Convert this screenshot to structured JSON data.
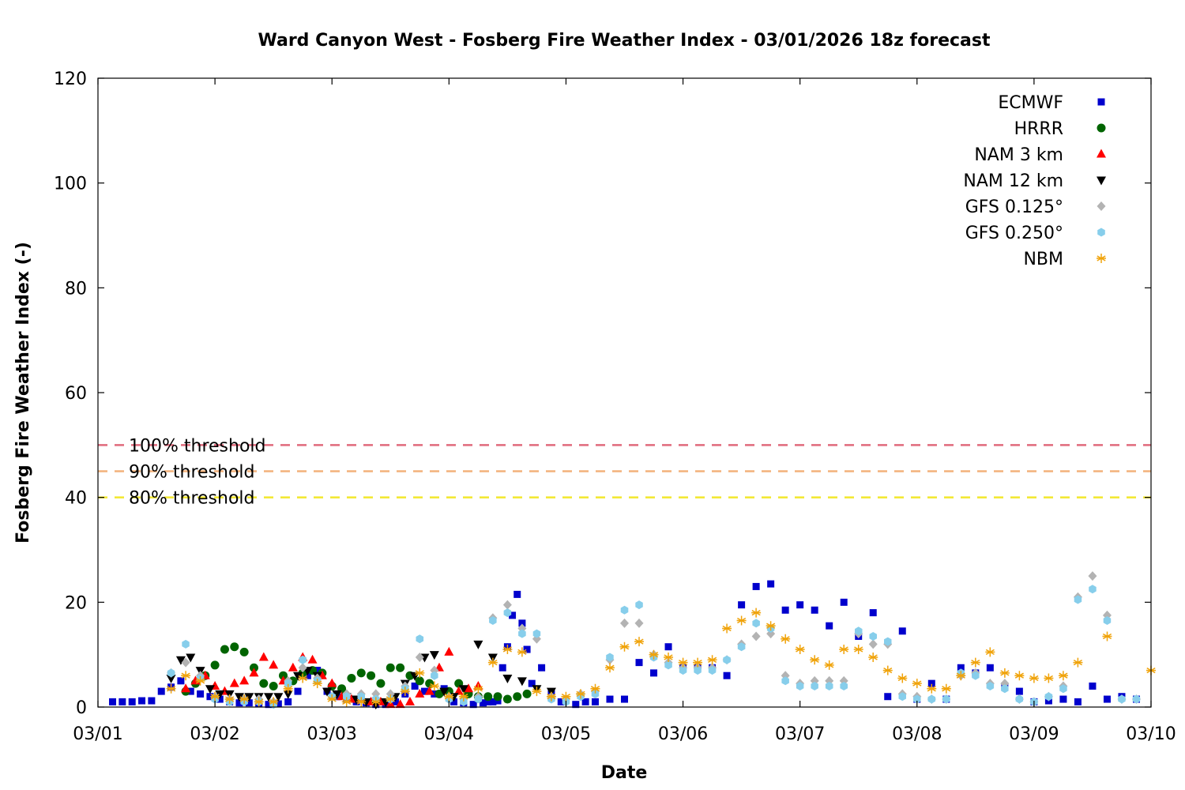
{
  "chart_data": {
    "type": "scatter",
    "title": "Ward Canyon West - Fosberg Fire Weather Index - 03/01/2026 18z forecast",
    "xlabel": "Date",
    "ylabel": "Fosberg Fire Weather Index (-)",
    "xlim": [
      "03/01 00z",
      "03/10 00z"
    ],
    "ylim": [
      0,
      120
    ],
    "x_ticks": [
      "03/01",
      "03/02",
      "03/03",
      "03/04",
      "03/05",
      "03/06",
      "03/07",
      "03/08",
      "03/09",
      "03/10"
    ],
    "y_ticks": [
      "0",
      "20",
      "40",
      "60",
      "80",
      "100",
      "120"
    ],
    "legend_position": "top-right",
    "grid": false,
    "thresholds": [
      {
        "name": "100% threshold",
        "value": 50,
        "color": "#e06a7c"
      },
      {
        "name": "90% threshold",
        "value": 45,
        "color": "#f3b27b"
      },
      {
        "name": "80% threshold",
        "value": 40,
        "color": "#f2e82d"
      }
    ],
    "series": [
      {
        "name": "ECMWF",
        "marker": "square",
        "color": "#0000cd",
        "x": [
          "03/01 03z",
          "03/01 05z",
          "03/01 07z",
          "03/01 09z",
          "03/01 11z",
          "03/01 13z",
          "03/01 15z",
          "03/01 17z",
          "03/01 19z",
          "03/01 21z",
          "03/01 23z",
          "03/02 01z",
          "03/02 03z",
          "03/02 05z",
          "03/02 07z",
          "03/02 09z",
          "03/02 11z",
          "03/02 13z",
          "03/02 15z",
          "03/02 17z",
          "03/02 19z",
          "03/02 21z",
          "03/02 23z",
          "03/03 01z",
          "03/03 03z",
          "03/03 05z",
          "03/03 07z",
          "03/03 09z",
          "03/03 11z",
          "03/03 13z",
          "03/03 15z",
          "03/03 17z",
          "03/03 19z",
          "03/03 21z",
          "03/03 23z",
          "03/04 01z",
          "03/04 03z",
          "03/04 05z",
          "03/04 07z",
          "03/04 08z",
          "03/04 09z",
          "03/04 10z",
          "03/04 11z",
          "03/04 12z",
          "03/04 13z",
          "03/04 14z",
          "03/04 15z",
          "03/04 16z",
          "03/04 17z",
          "03/04 19z",
          "03/04 21z",
          "03/04 23z",
          "03/05 02z",
          "03/05 04z",
          "03/05 06z",
          "03/05 09z",
          "03/05 12z",
          "03/05 15z",
          "03/05 18z",
          "03/05 21z",
          "03/06 00z",
          "03/06 03z",
          "03/06 06z",
          "03/06 09z",
          "03/06 12z",
          "03/06 15z",
          "03/06 18z",
          "03/06 21z",
          "03/07 00z",
          "03/07 03z",
          "03/07 06z",
          "03/07 09z",
          "03/07 12z",
          "03/07 15z",
          "03/07 18z",
          "03/07 21z",
          "03/08 00z",
          "03/08 03z",
          "03/08 06z",
          "03/08 09z",
          "03/08 12z",
          "03/08 15z",
          "03/08 18z",
          "03/08 21z",
          "03/09 00z",
          "03/09 03z",
          "03/09 06z",
          "03/09 09z",
          "03/09 12z",
          "03/09 15z",
          "03/09 18z",
          "03/09 21z"
        ],
        "y": [
          1.0,
          1.0,
          1.0,
          1.2,
          1.2,
          3.0,
          3.8,
          5.0,
          3.0,
          2.5,
          2.0,
          1.5,
          1.0,
          0.8,
          0.8,
          0.6,
          0.5,
          0.6,
          1.0,
          3.0,
          6.0,
          7.0,
          3.0,
          2.0,
          1.5,
          1.0,
          0.8,
          0.5,
          0.5,
          1.0,
          2.5,
          4.0,
          3.0,
          2.5,
          3.5,
          1.0,
          0.8,
          0.5,
          0.8,
          1.0,
          1.0,
          1.2,
          7.5,
          11.5,
          17.5,
          21.5,
          16.0,
          11.0,
          4.5,
          7.5,
          2.5,
          1.0,
          0.5,
          1.0,
          1.0,
          1.5,
          1.5,
          8.5,
          6.5,
          11.5,
          7.5,
          7.5,
          7.5,
          6.0,
          19.5,
          23.0,
          23.5,
          18.5,
          19.5,
          18.5,
          15.5,
          20.0,
          13.5,
          18.0,
          2.0,
          14.5,
          1.5,
          4.5,
          1.5,
          7.5,
          6.5,
          7.5,
          4.0,
          3.0,
          1.0,
          1.2,
          1.5,
          1.0,
          4.0,
          1.5,
          2.0,
          1.5
        ]
      },
      {
        "name": "HRRR",
        "marker": "circle",
        "color": "#006400",
        "x": [
          "03/01 18z",
          "03/01 20z",
          "03/01 22z",
          "03/02 00z",
          "03/02 02z",
          "03/02 04z",
          "03/02 06z",
          "03/02 08z",
          "03/02 10z",
          "03/02 12z",
          "03/02 14z",
          "03/02 16z",
          "03/02 18z",
          "03/02 20z",
          "03/02 22z",
          "03/03 00z",
          "03/03 02z",
          "03/03 04z",
          "03/03 06z",
          "03/03 08z",
          "03/03 10z",
          "03/03 12z",
          "03/03 14z",
          "03/03 16z",
          "03/03 18z",
          "03/03 20z",
          "03/03 22z",
          "03/04 00z",
          "03/04 02z",
          "03/04 04z",
          "03/04 06z",
          "03/04 08z",
          "03/04 10z",
          "03/04 12z",
          "03/04 14z",
          "03/04 16z"
        ],
        "y": [
          3.0,
          4.5,
          6.0,
          8.0,
          11.0,
          11.5,
          10.5,
          7.5,
          4.5,
          4.0,
          6.0,
          5.0,
          6.5,
          7.0,
          6.5,
          4.0,
          3.5,
          5.5,
          6.5,
          6.0,
          4.5,
          7.5,
          7.5,
          6.0,
          5.0,
          4.5,
          2.5,
          3.0,
          4.5,
          2.5,
          2.0,
          2.0,
          2.0,
          1.5,
          2.0,
          2.5
        ]
      },
      {
        "name": "NAM 3 km",
        "marker": "triangle-up",
        "color": "#ff0000",
        "x": [
          "03/01 18z",
          "03/01 20z",
          "03/01 22z",
          "03/02 00z",
          "03/02 02z",
          "03/02 04z",
          "03/02 06z",
          "03/02 08z",
          "03/02 10z",
          "03/02 12z",
          "03/02 14z",
          "03/02 16z",
          "03/02 18z",
          "03/02 20z",
          "03/02 22z",
          "03/03 00z",
          "03/03 02z",
          "03/03 04z",
          "03/03 06z",
          "03/03 08z",
          "03/03 10z",
          "03/03 12z",
          "03/03 14z",
          "03/03 16z",
          "03/03 18z",
          "03/03 20z",
          "03/03 22z",
          "03/04 00z",
          "03/04 02z",
          "03/04 04z",
          "03/04 06z"
        ],
        "y": [
          3.5,
          5.0,
          6.0,
          4.0,
          3.0,
          4.5,
          5.0,
          6.5,
          9.5,
          8.0,
          5.0,
          7.5,
          9.5,
          9.0,
          6.0,
          4.5,
          2.0,
          1.5,
          1.5,
          1.0,
          1.0,
          0.5,
          0.5,
          1.0,
          2.5,
          3.0,
          7.5,
          10.5,
          3.0,
          3.5,
          4.0
        ]
      },
      {
        "name": "NAM 12 km",
        "marker": "triangle-down",
        "color": "#000000",
        "x": [
          "03/01 15z",
          "03/01 17z",
          "03/01 19z",
          "03/01 21z",
          "03/01 23z",
          "03/02 01z",
          "03/02 03z",
          "03/02 05z",
          "03/02 07z",
          "03/02 09z",
          "03/02 11z",
          "03/02 13z",
          "03/02 15z",
          "03/02 17z",
          "03/02 19z",
          "03/02 21z",
          "03/02 23z",
          "03/03 01z",
          "03/03 03z",
          "03/03 05z",
          "03/03 07z",
          "03/03 09z",
          "03/03 11z",
          "03/03 13z",
          "03/03 15z",
          "03/03 17z",
          "03/03 19z",
          "03/03 21z",
          "03/03 23z",
          "03/04 01z",
          "03/04 03z",
          "03/04 06z",
          "03/04 09z",
          "03/04 12z",
          "03/04 15z",
          "03/04 18z",
          "03/04 21z"
        ],
        "y": [
          5.5,
          9.0,
          9.5,
          7.0,
          3.5,
          2.5,
          2.5,
          2.0,
          2.0,
          2.0,
          2.0,
          2.0,
          2.5,
          6.0,
          7.0,
          6.0,
          3.0,
          2.5,
          2.0,
          1.5,
          1.0,
          0.5,
          1.0,
          2.0,
          4.5,
          6.0,
          9.5,
          10.0,
          3.0,
          2.0,
          3.5,
          12.0,
          9.5,
          5.5,
          5.0,
          3.5,
          3.0
        ]
      },
      {
        "name": "GFS 0.125°",
        "marker": "diamond",
        "color": "#b3b3b3",
        "x": [
          "03/01 15z",
          "03/01 18z",
          "03/01 21z",
          "03/02 00z",
          "03/02 03z",
          "03/02 06z",
          "03/02 09z",
          "03/02 12z",
          "03/02 15z",
          "03/02 18z",
          "03/02 21z",
          "03/03 00z",
          "03/03 03z",
          "03/03 06z",
          "03/03 09z",
          "03/03 12z",
          "03/03 15z",
          "03/03 18z",
          "03/03 21z",
          "03/04 00z",
          "03/04 03z",
          "03/04 06z",
          "03/04 09z",
          "03/04 12z",
          "03/04 15z",
          "03/04 18z",
          "03/04 21z",
          "03/05 00z",
          "03/05 03z",
          "03/05 06z",
          "03/05 09z",
          "03/05 12z",
          "03/05 15z",
          "03/05 18z",
          "03/05 21z",
          "03/06 00z",
          "03/06 03z",
          "03/06 06z",
          "03/06 09z",
          "03/06 12z",
          "03/06 15z",
          "03/06 18z",
          "03/06 21z",
          "03/07 00z",
          "03/07 03z",
          "03/07 06z",
          "03/07 09z",
          "03/07 12z",
          "03/07 15z",
          "03/07 18z",
          "03/07 21z",
          "03/08 00z",
          "03/08 03z",
          "03/08 06z",
          "03/08 09z",
          "03/08 12z",
          "03/08 15z",
          "03/08 18z",
          "03/08 21z",
          "03/09 00z",
          "03/09 03z",
          "03/09 06z",
          "03/09 09z",
          "03/09 12z",
          "03/09 15z",
          "03/09 18z",
          "03/09 21z"
        ],
        "y": [
          6.5,
          8.5,
          6.0,
          2.0,
          1.5,
          1.5,
          1.5,
          1.0,
          5.0,
          7.5,
          5.5,
          2.0,
          2.5,
          2.5,
          2.5,
          2.5,
          4.0,
          9.5,
          7.0,
          2.0,
          1.5,
          2.0,
          17.0,
          19.5,
          15.0,
          13.0,
          2.0,
          1.5,
          2.5,
          3.0,
          9.0,
          16.0,
          16.0,
          10.0,
          8.5,
          7.5,
          7.5,
          7.5,
          9.0,
          12.0,
          13.5,
          14.0,
          6.0,
          4.5,
          5.0,
          5.0,
          5.0,
          14.0,
          12.0,
          12.0,
          2.5,
          2.0,
          1.5,
          1.5,
          6.0,
          6.5,
          4.5,
          4.5,
          1.5,
          1.0,
          2.0,
          4.0,
          21.0,
          25.0,
          17.5,
          1.5,
          1.5
        ]
      },
      {
        "name": "GFS 0.250°",
        "marker": "hexagon",
        "color": "#87ceeb",
        "x": [
          "03/01 15z",
          "03/01 18z",
          "03/01 21z",
          "03/02 00z",
          "03/02 03z",
          "03/02 06z",
          "03/02 09z",
          "03/02 12z",
          "03/02 15z",
          "03/02 18z",
          "03/02 21z",
          "03/03 00z",
          "03/03 03z",
          "03/03 06z",
          "03/03 09z",
          "03/03 12z",
          "03/03 15z",
          "03/03 18z",
          "03/03 21z",
          "03/04 00z",
          "03/04 03z",
          "03/04 06z",
          "03/04 09z",
          "03/04 12z",
          "03/04 15z",
          "03/04 18z",
          "03/04 21z",
          "03/05 00z",
          "03/05 03z",
          "03/05 06z",
          "03/05 09z",
          "03/05 12z",
          "03/05 15z",
          "03/05 18z",
          "03/05 21z",
          "03/06 00z",
          "03/06 03z",
          "03/06 06z",
          "03/06 09z",
          "03/06 12z",
          "03/06 15z",
          "03/06 18z",
          "03/06 21z",
          "03/07 00z",
          "03/07 03z",
          "03/07 06z",
          "03/07 09z",
          "03/07 12z",
          "03/07 15z",
          "03/07 18z",
          "03/07 21z",
          "03/08 00z",
          "03/08 03z",
          "03/08 06z",
          "03/08 09z",
          "03/08 12z",
          "03/08 15z",
          "03/08 18z",
          "03/08 21z",
          "03/09 00z",
          "03/09 03z",
          "03/09 06z",
          "03/09 09z",
          "03/09 12z",
          "03/09 15z",
          "03/09 18z",
          "03/09 21z"
        ],
        "y": [
          6.5,
          12.0,
          5.5,
          1.5,
          1.0,
          1.0,
          1.0,
          0.5,
          4.5,
          9.0,
          5.0,
          2.0,
          2.0,
          2.0,
          1.5,
          1.5,
          3.5,
          13.0,
          6.0,
          1.5,
          1.0,
          1.5,
          16.5,
          18.0,
          14.0,
          14.0,
          1.5,
          1.0,
          2.0,
          2.5,
          9.5,
          18.5,
          19.5,
          9.5,
          8.0,
          7.0,
          7.0,
          7.0,
          9.0,
          11.5,
          16.0,
          15.0,
          5.0,
          4.0,
          4.0,
          4.0,
          4.0,
          14.5,
          13.5,
          12.5,
          2.0,
          1.5,
          1.5,
          1.5,
          6.5,
          6.0,
          4.0,
          3.5,
          1.5,
          1.0,
          2.0,
          3.5,
          20.5,
          22.5,
          16.5,
          1.5,
          1.5
        ]
      },
      {
        "name": "NBM",
        "marker": "asterisk",
        "color": "#f0a30a",
        "x": [
          "03/01 15z",
          "03/01 18z",
          "03/01 21z",
          "03/02 00z",
          "03/02 03z",
          "03/02 06z",
          "03/02 09z",
          "03/02 12z",
          "03/02 15z",
          "03/02 18z",
          "03/02 21z",
          "03/03 00z",
          "03/03 03z",
          "03/03 06z",
          "03/03 09z",
          "03/03 12z",
          "03/03 15z",
          "03/03 18z",
          "03/03 21z",
          "03/04 00z",
          "03/04 03z",
          "03/04 06z",
          "03/04 09z",
          "03/04 12z",
          "03/04 15z",
          "03/04 18z",
          "03/04 21z",
          "03/05 00z",
          "03/05 03z",
          "03/05 06z",
          "03/05 09z",
          "03/05 12z",
          "03/05 15z",
          "03/05 18z",
          "03/05 21z",
          "03/06 00z",
          "03/06 03z",
          "03/06 06z",
          "03/06 09z",
          "03/06 12z",
          "03/06 15z",
          "03/06 18z",
          "03/06 21z",
          "03/07 00z",
          "03/07 03z",
          "03/07 06z",
          "03/07 09z",
          "03/07 12z",
          "03/07 15z",
          "03/07 18z",
          "03/07 21z",
          "03/08 00z",
          "03/08 03z",
          "03/08 06z",
          "03/08 09z",
          "03/08 12z",
          "03/08 15z",
          "03/08 18z",
          "03/08 21z",
          "03/09 00z",
          "03/09 03z",
          "03/09 06z",
          "03/09 09z",
          "03/09 12z",
          "03/09 15z",
          "03/09 18z",
          "03/09 21z",
          "03/10 00z"
        ],
        "y": [
          3.5,
          6.0,
          5.0,
          2.0,
          1.5,
          1.5,
          1.0,
          1.0,
          3.5,
          5.5,
          4.5,
          1.5,
          1.0,
          1.0,
          1.0,
          1.5,
          3.0,
          6.5,
          4.0,
          2.0,
          2.0,
          3.5,
          8.5,
          11.0,
          10.5,
          3.0,
          2.0,
          2.0,
          2.5,
          3.5,
          7.5,
          11.5,
          12.5,
          10.0,
          9.5,
          8.5,
          8.5,
          9.0,
          15.0,
          16.5,
          18.0,
          15.5,
          13.0,
          11.0,
          9.0,
          8.0,
          11.0,
          11.0,
          9.5,
          7.0,
          5.5,
          4.5,
          3.5,
          3.5,
          6.0,
          8.5,
          10.5,
          6.5,
          6.0,
          5.5,
          5.5,
          6.0,
          8.5,
          null,
          13.5,
          null,
          null,
          7.0
        ]
      }
    ]
  }
}
